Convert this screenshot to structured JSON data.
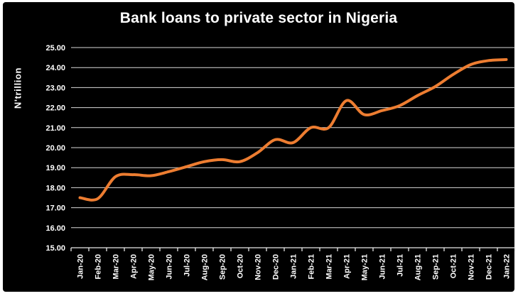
{
  "chart_data": {
    "type": "line",
    "title": "Bank loans to private sector in Nigeria",
    "ylabel": "N'trillion",
    "xlabel": "",
    "categories": [
      "Jan-20",
      "Feb-20",
      "Mar-20",
      "Apr-20",
      "May-20",
      "Jun-20",
      "Jul-20",
      "Aug-20",
      "Sep-20",
      "Oct-20",
      "Nov-20",
      "Dec-20",
      "Jan-21",
      "Feb-21",
      "Mar-21",
      "Apr-21",
      "May-21",
      "Jun-21",
      "Jul-21",
      "Aug-21",
      "Sep-21",
      "Oct-21",
      "Nov-21",
      "Dec-21",
      "Jan-22"
    ],
    "values": [
      17.5,
      17.45,
      18.55,
      18.65,
      18.6,
      18.8,
      19.05,
      19.3,
      19.4,
      19.3,
      19.75,
      20.4,
      20.25,
      21.0,
      21.0,
      22.35,
      21.65,
      21.85,
      22.1,
      22.6,
      23.05,
      23.65,
      24.15,
      24.35,
      24.4
    ],
    "ylim": [
      15,
      25
    ],
    "ytick_step": 1,
    "ytick_decimals": 2,
    "grid": "horizontal-only",
    "legend": "none",
    "line_smooth": true,
    "colors": {
      "line": "#ED7D31",
      "background": "#000000",
      "page": "#FFFFFF",
      "grid": "#D9D9D9",
      "axis": "#E8E8E8",
      "text": "#FFFFFF"
    }
  }
}
